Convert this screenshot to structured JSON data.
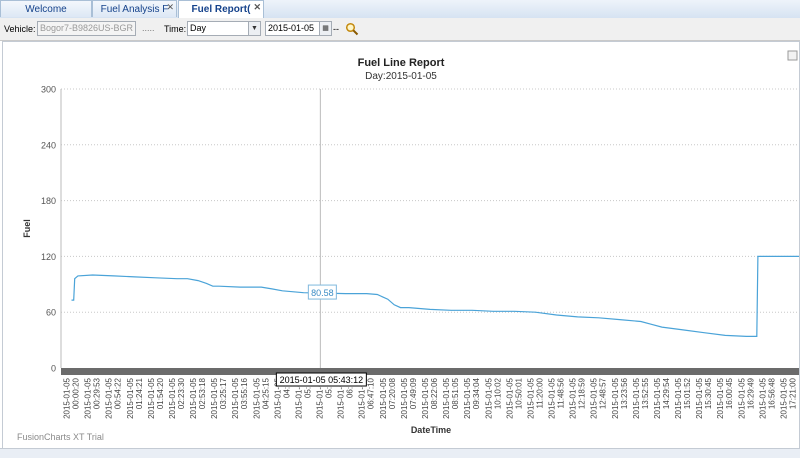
{
  "tabs": [
    {
      "label": "Welcome",
      "closable": false
    },
    {
      "label": "Fuel Analysis F",
      "closable": true
    },
    {
      "label": "Fuel Report(",
      "closable": true,
      "active": true
    }
  ],
  "toolbar": {
    "vehicle_label": "Vehicle:",
    "vehicle_value": "Bogor7-B9826US-BGR",
    "vehicle_more": ".....",
    "time_label": "Time:",
    "time_value": "Day",
    "date_value": "2015-01-05",
    "date_separator": "--"
  },
  "chart_data": {
    "type": "line",
    "title": "Fuel Line Report",
    "subtitle": "Day:2015-01-05",
    "xlabel": "DateTime",
    "ylabel": "Fuel",
    "ylim": [
      0,
      300
    ],
    "yticks": [
      0,
      60,
      120,
      180,
      240,
      300
    ],
    "grid": true,
    "x_tick_labels": [
      [
        "2015-01-05",
        "00:00:20"
      ],
      [
        "2015-01-05",
        "00:29:53"
      ],
      [
        "2015-01-05",
        "00:54:22"
      ],
      [
        "2015-01-05",
        "01:24:21"
      ],
      [
        "2015-01-05",
        "01:54:20"
      ],
      [
        "2015-01-05",
        "02:23:30"
      ],
      [
        "2015-01-05",
        "02:53:18"
      ],
      [
        "2015-01-05",
        "03:25:17"
      ],
      [
        "2015-01-05",
        "03:55:16"
      ],
      [
        "2015-01-05",
        "04:25:15"
      ],
      [
        "2015-01-05",
        "04:51"
      ],
      [
        "2015-01-05",
        "05:21"
      ],
      [
        "2015-01-05",
        "05:50"
      ],
      [
        "2015-01-05",
        "06:19"
      ],
      [
        "2015-01-05",
        "06:47:10"
      ],
      [
        "2015-01-05",
        "07:20:08"
      ],
      [
        "2015-01-05",
        "07:49:09"
      ],
      [
        "2015-01-05",
        "08:22:06"
      ],
      [
        "2015-01-05",
        "08:51:05"
      ],
      [
        "2015-01-05",
        "09:34:04"
      ],
      [
        "2015-01-05",
        "10:10:02"
      ],
      [
        "2015-01-05",
        "10:50:01"
      ],
      [
        "2015-01-05",
        "11:20:00"
      ],
      [
        "2015-01-05",
        "11:48:56"
      ],
      [
        "2015-01-05",
        "12:18:59"
      ],
      [
        "2015-01-05",
        "12:48:57"
      ],
      [
        "2015-01-05",
        "13:23:56"
      ],
      [
        "2015-01-05",
        "13:52:55"
      ],
      [
        "2015-01-05",
        "14:29:54"
      ],
      [
        "2015-01-05",
        "15:01:52"
      ],
      [
        "2015-01-05",
        "15:30:45"
      ],
      [
        "2015-01-05",
        "16:00:45"
      ],
      [
        "2015-01-05",
        "16:29:49"
      ],
      [
        "2015-01-05",
        "16:56:48"
      ],
      [
        "2015-01-05",
        "17:21:00"
      ]
    ],
    "series": [
      {
        "color": "#4aa3d8",
        "points": [
          [
            0,
            73
          ],
          [
            0.1,
            73
          ],
          [
            0.15,
            96
          ],
          [
            0.3,
            99
          ],
          [
            1,
            100
          ],
          [
            2,
            99
          ],
          [
            3,
            98
          ],
          [
            4,
            97
          ],
          [
            5,
            96
          ],
          [
            5.5,
            96
          ],
          [
            6,
            94
          ],
          [
            6.4,
            91
          ],
          [
            6.7,
            88
          ],
          [
            7,
            88
          ],
          [
            8,
            87
          ],
          [
            9,
            87
          ],
          [
            9.5,
            85
          ],
          [
            10,
            83
          ],
          [
            11,
            81
          ],
          [
            12,
            80.58
          ],
          [
            13,
            80
          ],
          [
            14,
            80
          ],
          [
            14.5,
            79
          ],
          [
            15,
            74
          ],
          [
            15.3,
            68
          ],
          [
            15.6,
            65
          ],
          [
            16,
            65
          ],
          [
            17,
            63
          ],
          [
            18,
            62
          ],
          [
            19,
            62
          ],
          [
            20,
            61
          ],
          [
            21,
            61
          ],
          [
            22,
            60
          ],
          [
            23,
            57
          ],
          [
            24,
            55
          ],
          [
            25,
            54
          ],
          [
            26,
            52
          ],
          [
            27,
            50
          ],
          [
            27.5,
            47
          ],
          [
            28,
            44
          ],
          [
            29,
            41
          ],
          [
            30,
            38
          ],
          [
            31,
            35
          ],
          [
            32,
            34
          ],
          [
            32.5,
            34
          ],
          [
            32.55,
            120
          ],
          [
            33,
            120
          ],
          [
            34,
            120
          ],
          [
            34.5,
            120
          ]
        ]
      }
    ],
    "tooltip_value": "80.58",
    "crosshair_label": "2015-01-05 05:43:12",
    "crosshair_index": 11.8,
    "watermark": "FusionCharts XT Trial"
  }
}
